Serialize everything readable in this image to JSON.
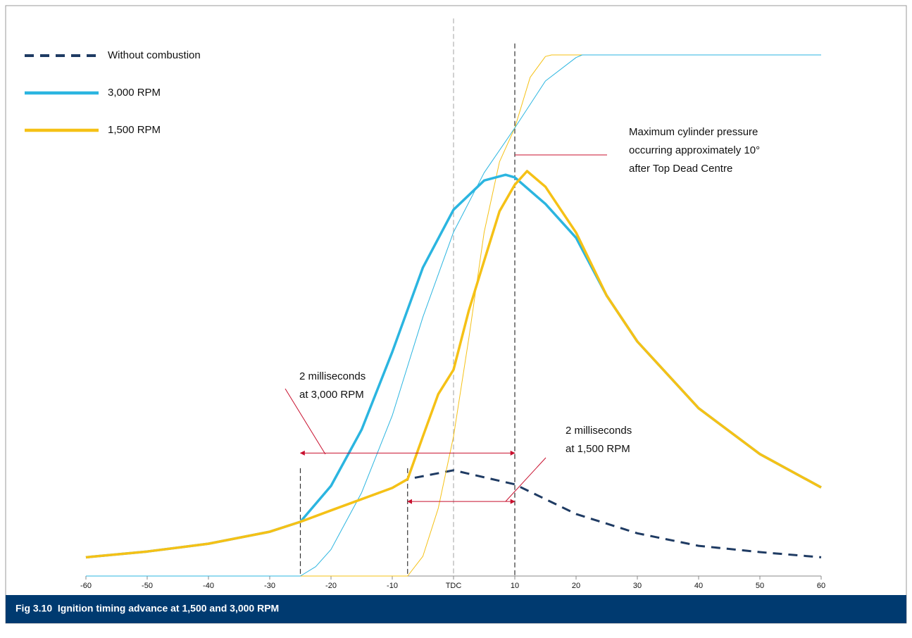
{
  "chart_data": {
    "type": "line",
    "caption": "Fig 3.10  Ignition timing advance at 1,500 and 3,000 RPM",
    "xlim": [
      -60,
      60
    ],
    "xticks": [
      -60,
      -50,
      -40,
      -30,
      -20,
      -10,
      {
        "value": 0,
        "label": "TDC"
      },
      10,
      20,
      30,
      40,
      50,
      60
    ],
    "ylim": [
      0,
      100
    ],
    "legend": "upper left",
    "series": [
      {
        "name": "Without combustion",
        "color": "#1f3b63",
        "style": "dashed",
        "x": [
          -60,
          -50,
          -40,
          -30,
          -25,
          -20,
          -10,
          -7.5,
          0,
          10,
          20,
          30,
          40,
          50,
          60
        ],
        "values": [
          3.6,
          4.7,
          6.2,
          8.5,
          10.4,
          12.6,
          16.9,
          18.6,
          20.3,
          17.6,
          11.9,
          8.2,
          5.8,
          4.6,
          3.6
        ]
      },
      {
        "color": "#f5c116",
        "style": "thin",
        "x": [
          -60,
          -7.5,
          -5,
          -2.5,
          0,
          2.5,
          5,
          7.5,
          10,
          12.5,
          15,
          16,
          60
        ],
        "values": [
          0,
          0,
          3.8,
          13,
          26.8,
          45.7,
          66,
          79.5,
          86,
          95.7,
          99.7,
          100,
          100
        ]
      },
      {
        "color": "#2bb5e0",
        "style": "thin",
        "x": [
          -60,
          -25,
          -22.5,
          -20,
          -15,
          -10,
          -5,
          0,
          5,
          10,
          15,
          20,
          21,
          60
        ],
        "values": [
          0,
          0,
          1.8,
          5.1,
          16,
          30.8,
          49.7,
          66,
          77.4,
          86,
          95,
          99.5,
          100,
          100
        ]
      },
      {
        "name": "3,000 RPM",
        "color": "#2bb5e0",
        "style": "solid",
        "x": [
          -60,
          -50,
          -40,
          -30,
          -25,
          -20,
          -15,
          -10,
          -5,
          0,
          5,
          8.5,
          10,
          15,
          20,
          25,
          30,
          40,
          50,
          60
        ],
        "values": [
          3.6,
          4.7,
          6.2,
          8.5,
          10.4,
          17.3,
          28.1,
          43,
          59.2,
          70.3,
          75.9,
          77,
          76.5,
          71.4,
          64.9,
          53.8,
          45,
          32.2,
          23.4,
          17
        ]
      },
      {
        "name": "1,500 RPM",
        "color": "#f5c116",
        "style": "solid",
        "x": [
          -60,
          -50,
          -40,
          -30,
          -25,
          -20,
          -10,
          -7.5,
          -5,
          -2.5,
          0,
          2.5,
          5,
          7.5,
          10,
          12,
          15,
          20,
          25,
          30,
          40,
          50,
          60
        ],
        "values": [
          3.6,
          4.7,
          6.2,
          8.5,
          10.4,
          12.6,
          16.9,
          18.6,
          26.8,
          34.9,
          39.6,
          51,
          60.5,
          70,
          75.1,
          77.7,
          74.7,
          65.9,
          53.8,
          45,
          32.2,
          23.4,
          17
        ]
      }
    ],
    "reference_lines": [
      {
        "x": 0,
        "top": 107,
        "color": "#b0b0b0"
      },
      {
        "x": -25,
        "top": 20.7,
        "color": "#333333"
      },
      {
        "x": -7.5,
        "top": 20.7,
        "color": "#333333"
      },
      {
        "x": 10,
        "top": 102.2,
        "color": "#333333"
      }
    ],
    "spans": [
      {
        "from": -25,
        "to": 10,
        "y": 23.6
      },
      {
        "from": -7.5,
        "to": 10,
        "y": 14.3
      }
    ],
    "annotations": [
      {
        "lines": [
          "Maximum cylinder pressure",
          "occurring approximately 10°",
          "after Top Dead Centre"
        ]
      },
      {
        "lines": [
          "2 milliseconds",
          "at 3,000 RPM"
        ]
      },
      {
        "lines": [
          "2 milliseconds",
          "at 1,500 RPM"
        ]
      }
    ]
  }
}
